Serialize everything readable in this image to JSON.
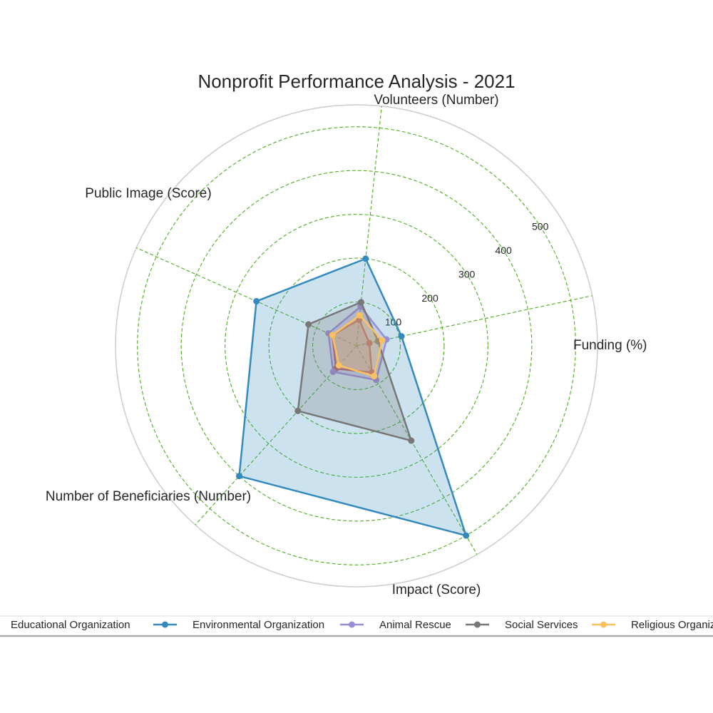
{
  "chart_data": {
    "type": "radar",
    "title": "Nonprofit Performance Analysis - 2021",
    "categories": [
      "Funding (%)",
      "Volunteers (Number)",
      "Public Image (Score)",
      "Number of Beneficiaries (Number)",
      "Impact (Score)"
    ],
    "rlim": [
      0,
      550
    ],
    "r_ticks": [
      100,
      200,
      300,
      400,
      500
    ],
    "grid": true,
    "grid_color": "#4caf1f",
    "legend_position": "bottom",
    "series": [
      {
        "name": "Educational Organization",
        "color": "#e24a33",
        "values": [
          30,
          60,
          60,
          70,
          70
        ]
      },
      {
        "name": "Environmental Organization",
        "color": "#348abd",
        "values": [
          105,
          200,
          250,
          400,
          500
        ]
      },
      {
        "name": "Animal Rescue",
        "color": "#988ed5",
        "values": [
          70,
          90,
          70,
          80,
          90
        ]
      },
      {
        "name": "Social Services",
        "color": "#777777",
        "values": [
          50,
          100,
          120,
          200,
          250
        ]
      },
      {
        "name": "Religious Organization",
        "color": "#fbc15e",
        "values": [
          60,
          70,
          60,
          60,
          80
        ]
      }
    ]
  }
}
